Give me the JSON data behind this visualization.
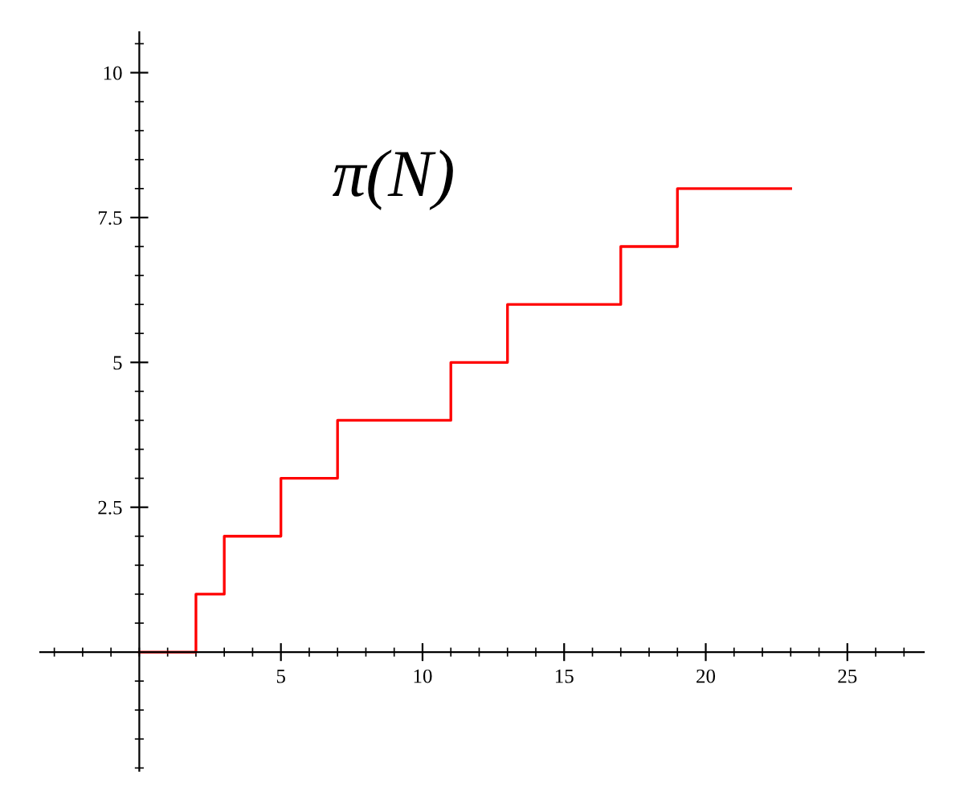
{
  "chart_data": {
    "type": "step",
    "title": "π(N)",
    "x": [
      0,
      2,
      3,
      5,
      7,
      11,
      13,
      17,
      19,
      23
    ],
    "series": [
      {
        "color": "#ff0000",
        "values": [
          0,
          1,
          2,
          3,
          4,
          5,
          6,
          7,
          8,
          8
        ]
      }
    ],
    "xlim": [
      -3.5,
      27.7
    ],
    "ylim": [
      -2.05,
      10.7
    ],
    "xticks": [
      5,
      10,
      15,
      20,
      25
    ],
    "yticks": [
      2.5,
      5,
      7.5,
      10
    ],
    "grid": false,
    "legend": false
  }
}
